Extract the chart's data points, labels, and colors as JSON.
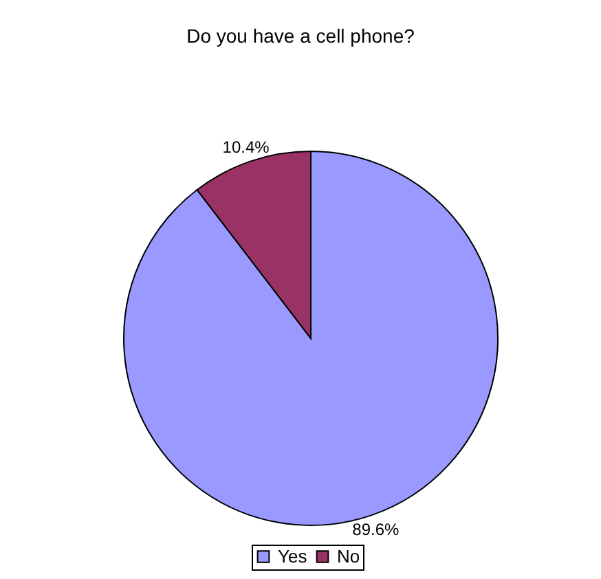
{
  "chart_data": {
    "type": "pie",
    "title": "Do you have a cell phone?",
    "categories": [
      "Yes",
      "No"
    ],
    "values": [
      89.6,
      10.4
    ],
    "colors": [
      "#9999ff",
      "#993366"
    ],
    "value_labels": [
      "89.6%",
      "10.4%"
    ],
    "legend": "bottom"
  }
}
